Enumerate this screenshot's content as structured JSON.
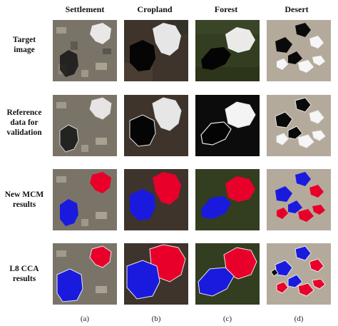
{
  "columns": [
    "Settlement",
    "Cropland",
    "Forest",
    "Desert"
  ],
  "rows": [
    {
      "lines": [
        "Target",
        "image"
      ]
    },
    {
      "lines": [
        "Reference",
        "data for",
        "validation"
      ]
    },
    {
      "lines": [
        "New MCM",
        "results"
      ]
    },
    {
      "lines": [
        "L8 CCA",
        "results"
      ]
    }
  ],
  "captions": [
    "(a)",
    "(b)",
    "(c)",
    "(d)"
  ],
  "colors": {
    "cloud": "#e8002a",
    "shadow": "#1a1adf",
    "outline": "#e6e6e6",
    "settlement_bg": "#7a7468",
    "cropland_bg": "#3e342c",
    "forest_bg": "#333d20",
    "desert_bg": "#b4aa9c"
  }
}
